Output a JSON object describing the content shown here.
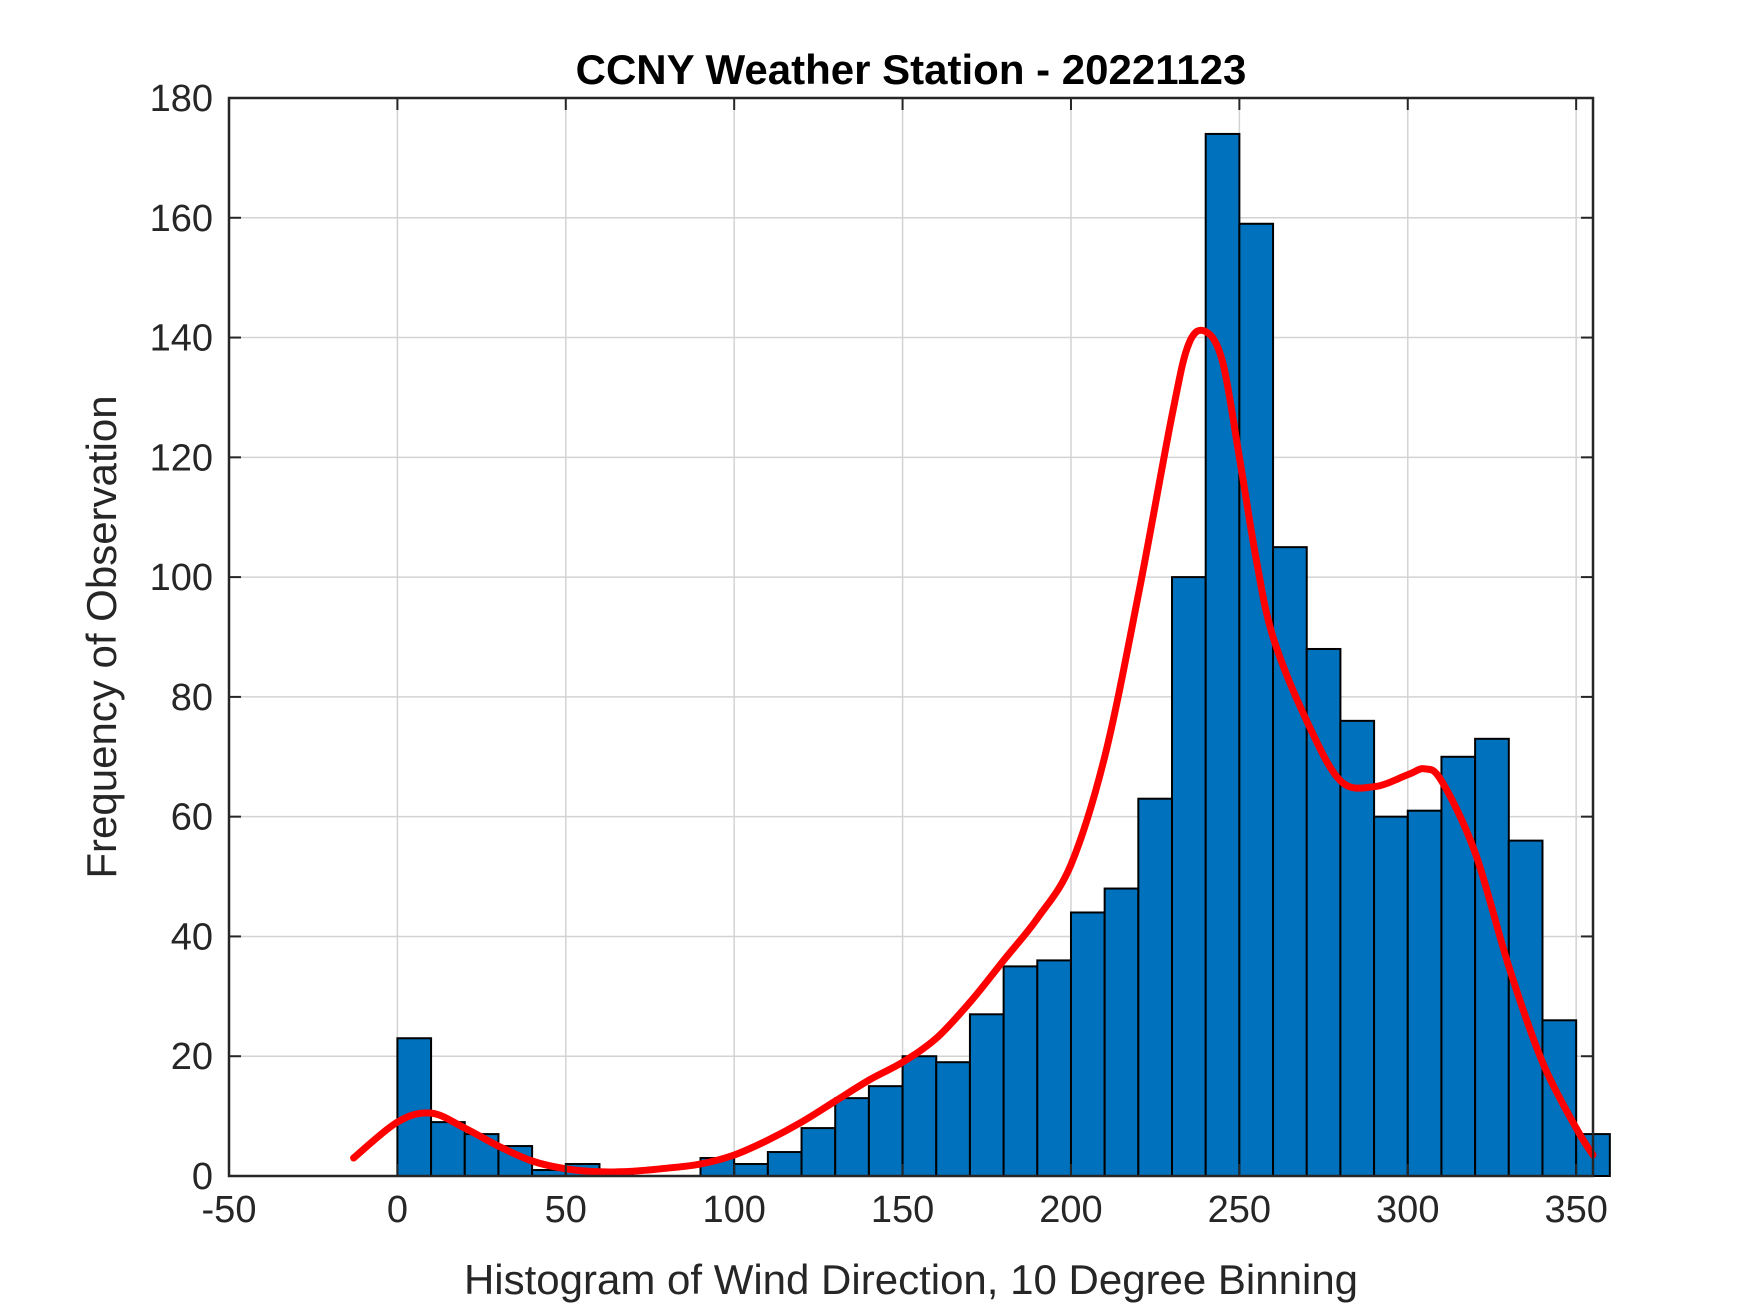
{
  "chart_data": {
    "type": "bar",
    "title": "CCNY Weather Station - 20221123",
    "xlabel": "Histogram of Wind Direction, 10 Degree Binning",
    "ylabel": "Frequency of Observation",
    "xlim": [
      -50,
      355
    ],
    "ylim": [
      0,
      180
    ],
    "x_ticks": [
      "-50",
      "0",
      "50",
      "100",
      "150",
      "200",
      "250",
      "300",
      "350"
    ],
    "y_ticks": [
      "0",
      "20",
      "40",
      "60",
      "80",
      "100",
      "120",
      "140",
      "160",
      "180"
    ],
    "grid": true,
    "bin_width": 10,
    "bins": [
      {
        "start": 0,
        "value": 23
      },
      {
        "start": 10,
        "value": 9
      },
      {
        "start": 20,
        "value": 7
      },
      {
        "start": 30,
        "value": 5
      },
      {
        "start": 40,
        "value": 1
      },
      {
        "start": 50,
        "value": 2
      },
      {
        "start": 60,
        "value": 1
      },
      {
        "start": 70,
        "value": 0
      },
      {
        "start": 80,
        "value": 0
      },
      {
        "start": 90,
        "value": 3
      },
      {
        "start": 100,
        "value": 2
      },
      {
        "start": 110,
        "value": 4
      },
      {
        "start": 120,
        "value": 8
      },
      {
        "start": 130,
        "value": 13
      },
      {
        "start": 140,
        "value": 15
      },
      {
        "start": 150,
        "value": 20
      },
      {
        "start": 160,
        "value": 19
      },
      {
        "start": 170,
        "value": 27
      },
      {
        "start": 180,
        "value": 35
      },
      {
        "start": 190,
        "value": 36
      },
      {
        "start": 200,
        "value": 44
      },
      {
        "start": 210,
        "value": 48
      },
      {
        "start": 220,
        "value": 63
      },
      {
        "start": 230,
        "value": 100
      },
      {
        "start": 240,
        "value": 174
      },
      {
        "start": 250,
        "value": 159
      },
      {
        "start": 260,
        "value": 105
      },
      {
        "start": 270,
        "value": 88
      },
      {
        "start": 280,
        "value": 76
      },
      {
        "start": 290,
        "value": 60
      },
      {
        "start": 300,
        "value": 61
      },
      {
        "start": 310,
        "value": 70
      },
      {
        "start": 320,
        "value": 73
      },
      {
        "start": 330,
        "value": 56
      },
      {
        "start": 340,
        "value": 26
      },
      {
        "start": 350,
        "value": 7
      }
    ],
    "density_curve": {
      "x": [
        -13,
        0,
        10,
        20,
        30,
        40,
        50,
        60,
        70,
        80,
        90,
        100,
        110,
        120,
        130,
        140,
        150,
        160,
        170,
        180,
        190,
        200,
        210,
        220,
        230,
        235,
        240,
        245,
        250,
        255,
        260,
        270,
        280,
        290,
        300,
        305,
        310,
        320,
        330,
        340,
        350,
        355
      ],
      "y": [
        3,
        9,
        10.5,
        8,
        5,
        2.5,
        1.2,
        0.7,
        0.8,
        1.3,
        2,
        3.5,
        6,
        9,
        12.5,
        16,
        19,
        23,
        29,
        36,
        43,
        52,
        70,
        97,
        127,
        139,
        141,
        136,
        120,
        103,
        90,
        76,
        66,
        65,
        67,
        68,
        66,
        54,
        35,
        19,
        8,
        3.5
      ]
    },
    "bar_color": "#0072BD",
    "bar_edge_color": "#000000",
    "curve_color": "#FF0000"
  }
}
